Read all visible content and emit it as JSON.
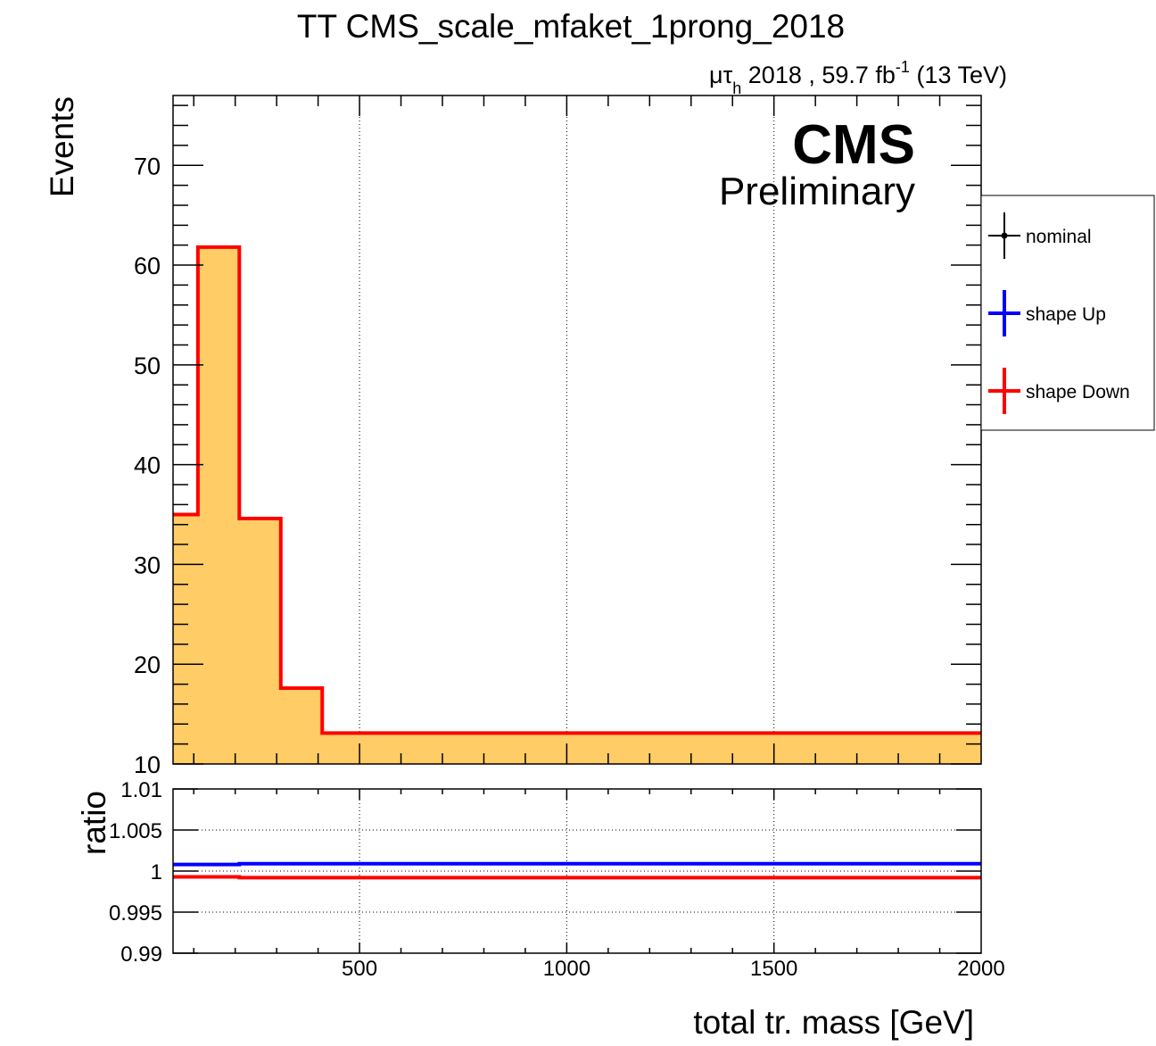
{
  "chart_data": {
    "type": "histogram",
    "title": "TT CMS_scale_mfaket_1prong_2018",
    "lumi": {
      "channel_mu": "μτ",
      "channel_sub": "h",
      "rest": " 2018 , 59.7 fb",
      "exp": "-1",
      "energy": " (13 TeV)"
    },
    "cms_label": "CMS",
    "preliminary_label": "Preliminary",
    "xlabel": "total tr. mass [GeV]",
    "xlim": [
      50,
      2000
    ],
    "xticks": [
      500,
      1000,
      1500,
      2000
    ],
    "bin_edges": [
      50,
      110,
      210,
      310,
      410,
      2000
    ],
    "main": {
      "ylabel": "Events",
      "ylim": [
        10,
        77
      ],
      "yticks": [
        10,
        20,
        30,
        40,
        50,
        60,
        70
      ],
      "nominal": [
        35.0,
        61.8,
        34.6,
        17.6,
        13.1
      ],
      "shape_down": [
        35.0,
        61.8,
        34.6,
        17.6,
        13.1
      ],
      "fill_color": "#ffcc66",
      "line_color": "#ff0000"
    },
    "ratio": {
      "ylabel": "ratio",
      "ylim": [
        0.99,
        1.01
      ],
      "yticks": [
        "0.99",
        "0.995",
        "1",
        "1.005",
        "1.01"
      ],
      "up": [
        1.0008,
        1.0008,
        1.0009,
        1.0009,
        1.0009
      ],
      "down": [
        0.9993,
        0.9993,
        0.9992,
        0.9992,
        0.9992
      ],
      "up_color": "#0000ff",
      "down_color": "#ff0000"
    },
    "legend": [
      {
        "label": "nominal",
        "color": "#000000",
        "style": "marker"
      },
      {
        "label": "shape Up",
        "color": "#0000ff",
        "style": "line"
      },
      {
        "label": "shape Down",
        "color": "#ff0000",
        "style": "line"
      }
    ],
    "grid": "x"
  }
}
